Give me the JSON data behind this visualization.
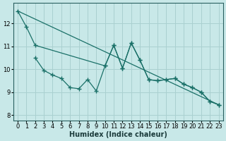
{
  "xlabel": "Humidex (Indice chaleur)",
  "bg_color": "#c8e8e8",
  "grid_color": "#aad0d0",
  "line_color": "#1a7068",
  "xlim": [
    -0.5,
    23.5
  ],
  "ylim": [
    7.75,
    12.9
  ],
  "xticks": [
    0,
    1,
    2,
    3,
    4,
    5,
    6,
    7,
    8,
    9,
    10,
    11,
    12,
    13,
    14,
    15,
    16,
    17,
    18,
    19,
    20,
    21,
    22,
    23
  ],
  "yticks": [
    8,
    9,
    10,
    11,
    12
  ],
  "trend_x": [
    0,
    23
  ],
  "trend_y": [
    12.55,
    8.45
  ],
  "upper_x": [
    0,
    1,
    2,
    10,
    11,
    12,
    13,
    14,
    15,
    16,
    17,
    18,
    19,
    20,
    21,
    22,
    23
  ],
  "upper_y": [
    12.55,
    11.85,
    11.05,
    10.15,
    11.05,
    10.05,
    11.15,
    10.4,
    9.55,
    9.5,
    9.55,
    9.6,
    9.35,
    9.2,
    9.0,
    8.6,
    8.45
  ],
  "lower_x": [
    2,
    3,
    4,
    5,
    6,
    7,
    8,
    9,
    10,
    11,
    12,
    13,
    14,
    15,
    16,
    17,
    18,
    19,
    20,
    21,
    22,
    23
  ],
  "lower_y": [
    10.5,
    9.95,
    9.75,
    9.6,
    9.2,
    9.15,
    9.55,
    9.05,
    10.15,
    11.05,
    10.05,
    11.15,
    10.4,
    9.55,
    9.5,
    9.55,
    9.6,
    9.35,
    9.2,
    9.0,
    8.6,
    8.45
  ]
}
